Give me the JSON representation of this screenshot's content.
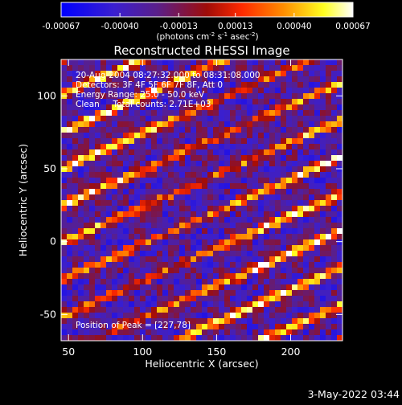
{
  "chart_data": {
    "type": "heatmap",
    "title": "Reconstructed RHESSI Image",
    "xlabel": "Heliocentric X (arcsec)",
    "ylabel": "Heliocentric Y (arcsec)",
    "xlim": [
      45,
      235
    ],
    "ylim": [
      -68,
      125
    ],
    "xticks": [
      50,
      100,
      150,
      200
    ],
    "yticks": [
      -50,
      0,
      50,
      100
    ],
    "colorbar": {
      "range": [
        -0.00067,
        0.00067
      ],
      "ticks": [
        -0.00067,
        -0.0004,
        -0.00013,
        0.00013,
        0.0004,
        0.00067
      ],
      "tick_labels": [
        "-0.00067",
        "-0.00040",
        "-0.00013",
        "0.00013",
        "0.00040",
        "0.00067"
      ],
      "unit_label": "(photons cm^-2 s^-1 asec^-2)",
      "colors": [
        "#0000ff",
        "#4020c0",
        "#602080",
        "#a01000",
        "#ff2000",
        "#ff8000",
        "#ffff00",
        "#ffffff"
      ]
    },
    "annotations": [
      "20-Aug-2004 08:27:32.000 to 08:31:08.000",
      "Detectors: 3F 4F 5F 6F 7F 8F, Att 0",
      "Energy Range: 25.0 - 50.0 keV",
      "Clean     Total counts: 2.71E+03"
    ],
    "peak_label": "Position of Peak = [227,78]",
    "peak": {
      "x": 227,
      "y": 78
    },
    "grid": false
  },
  "footer": {
    "date": "3-May-2022 03:44"
  }
}
